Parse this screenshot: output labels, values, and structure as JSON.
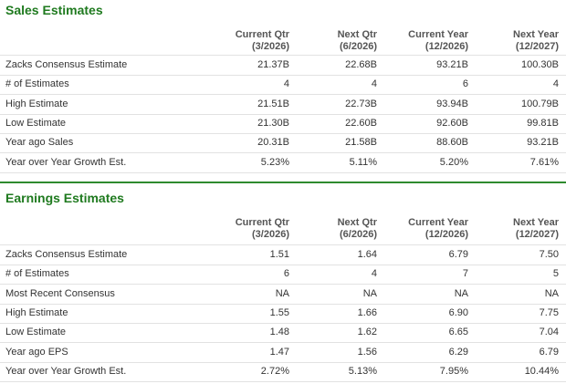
{
  "sections": [
    {
      "title": "Sales Estimates",
      "columns": [
        {
          "name": "Current Qtr",
          "period": "(3/2026)"
        },
        {
          "name": "Next Qtr",
          "period": "(6/2026)"
        },
        {
          "name": "Current Year",
          "period": "(12/2026)"
        },
        {
          "name": "Next Year",
          "period": "(12/2027)"
        }
      ],
      "rows": [
        {
          "label": "Zacks Consensus Estimate",
          "cells": [
            "21.37B",
            "22.68B",
            "93.21B",
            "100.30B"
          ]
        },
        {
          "label": "# of Estimates",
          "cells": [
            "4",
            "4",
            "6",
            "4"
          ]
        },
        {
          "label": "High Estimate",
          "cells": [
            "21.51B",
            "22.73B",
            "93.94B",
            "100.79B"
          ]
        },
        {
          "label": "Low Estimate",
          "cells": [
            "21.30B",
            "22.60B",
            "92.60B",
            "99.81B"
          ]
        },
        {
          "label": "Year ago Sales",
          "cells": [
            "20.31B",
            "21.58B",
            "88.60B",
            "93.21B"
          ]
        },
        {
          "label": "Year over Year Growth Est.",
          "cells": [
            "5.23%",
            "5.11%",
            "5.20%",
            "7.61%"
          ]
        }
      ]
    },
    {
      "title": "Earnings Estimates",
      "columns": [
        {
          "name": "Current Qtr",
          "period": "(3/2026)"
        },
        {
          "name": "Next Qtr",
          "period": "(6/2026)"
        },
        {
          "name": "Current Year",
          "period": "(12/2026)"
        },
        {
          "name": "Next Year",
          "period": "(12/2027)"
        }
      ],
      "rows": [
        {
          "label": "Zacks Consensus Estimate",
          "cells": [
            "1.51",
            "1.64",
            "6.79",
            "7.50"
          ]
        },
        {
          "label": "# of Estimates",
          "cells": [
            "6",
            "4",
            "7",
            "5"
          ]
        },
        {
          "label": "Most Recent Consensus",
          "cells": [
            "NA",
            "NA",
            "NA",
            "NA"
          ]
        },
        {
          "label": "High Estimate",
          "cells": [
            "1.55",
            "1.66",
            "6.90",
            "7.75"
          ]
        },
        {
          "label": "Low Estimate",
          "cells": [
            "1.48",
            "1.62",
            "6.65",
            "7.04"
          ]
        },
        {
          "label": "Year ago EPS",
          "cells": [
            "1.47",
            "1.56",
            "6.29",
            "6.79"
          ]
        },
        {
          "label": "Year over Year Growth Est.",
          "cells": [
            "2.72%",
            "5.13%",
            "7.95%",
            "10.44%"
          ]
        }
      ]
    }
  ]
}
